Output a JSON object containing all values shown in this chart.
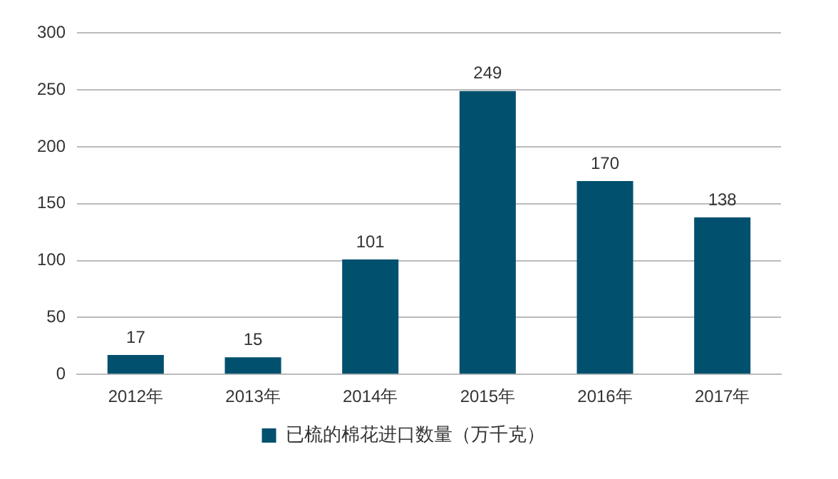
{
  "chart_data": {
    "type": "bar",
    "categories": [
      "2012年",
      "2013年",
      "2014年",
      "2015年",
      "2016年",
      "2017年"
    ],
    "series": [
      {
        "name": "已梳的棉花进口数量（万千克）",
        "color": "#00506e",
        "values": [
          17,
          15,
          101,
          249,
          170,
          138
        ]
      }
    ],
    "ylim": [
      0,
      300
    ],
    "yticks": [
      0,
      50,
      100,
      150,
      200,
      250,
      300
    ],
    "grid": "y",
    "legend": "bottom",
    "data_labels": true
  }
}
